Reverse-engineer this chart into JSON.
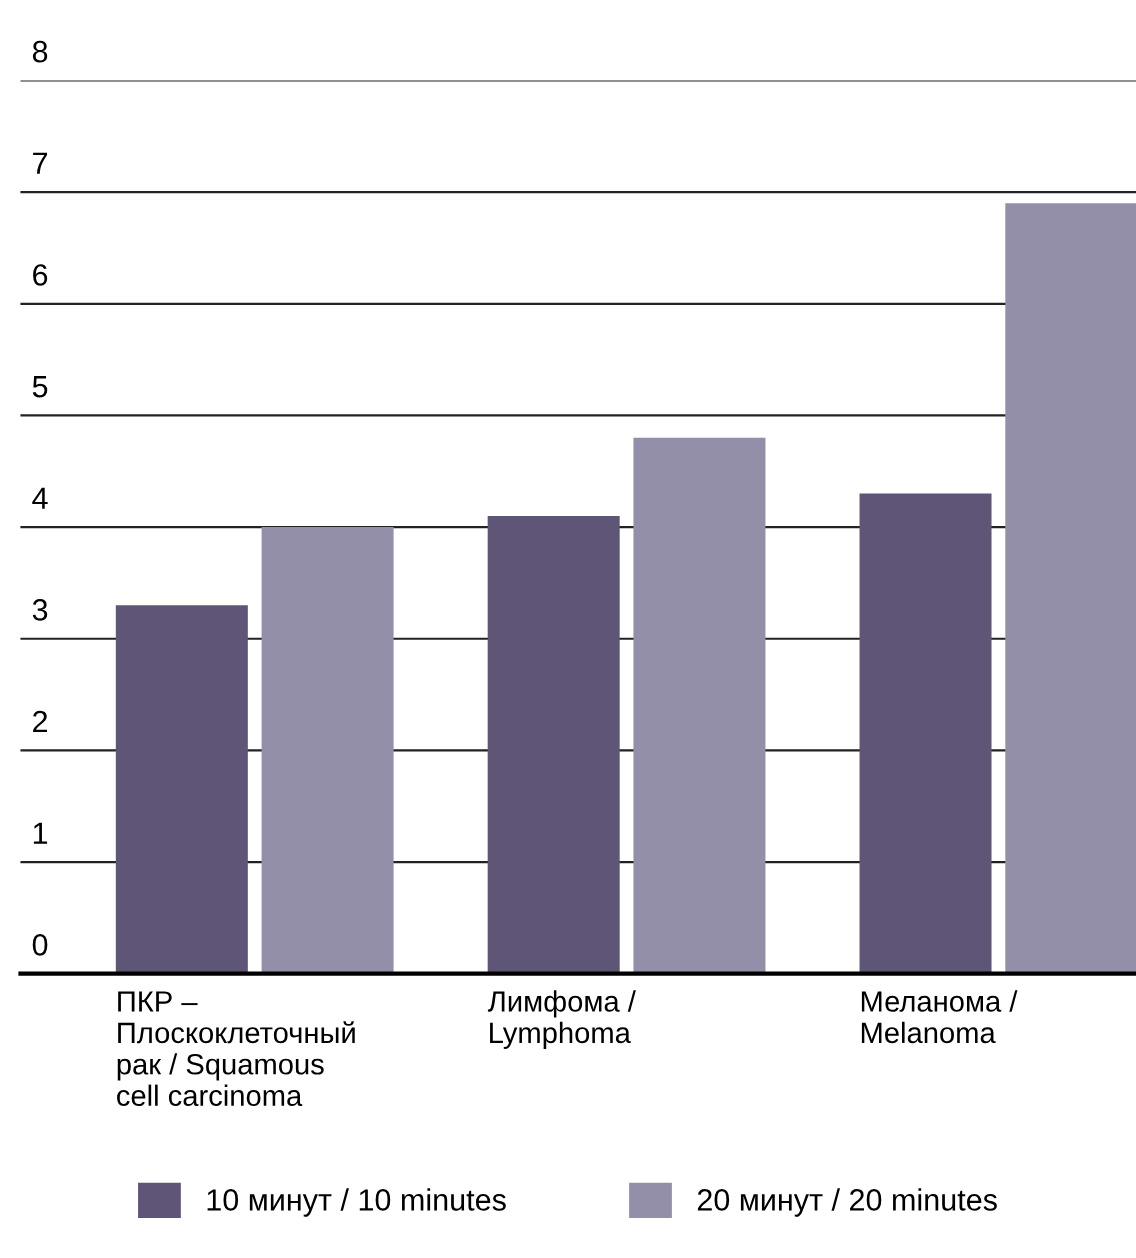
{
  "chart_data": {
    "type": "bar",
    "categories": [
      "ПКР –\nПлоскоклеточный\nрак / Squamous\ncell carcinoma",
      "Лимфома /\nLymphoma",
      "Меланома /\nMelanoma"
    ],
    "series": [
      {
        "name": "10 минут / 10 minutes",
        "color": "#5f5577",
        "values": [
          3.3,
          4.1,
          4.3
        ]
      },
      {
        "name": "20 минут / 20 minutes",
        "color": "#948fa8",
        "values": [
          4.0,
          4.8,
          6.9
        ]
      }
    ],
    "ylim": [
      0,
      8
    ],
    "yticks": [
      0,
      1,
      2,
      3,
      4,
      5,
      6,
      7,
      8
    ],
    "grid": "y",
    "legend": "bottom"
  }
}
